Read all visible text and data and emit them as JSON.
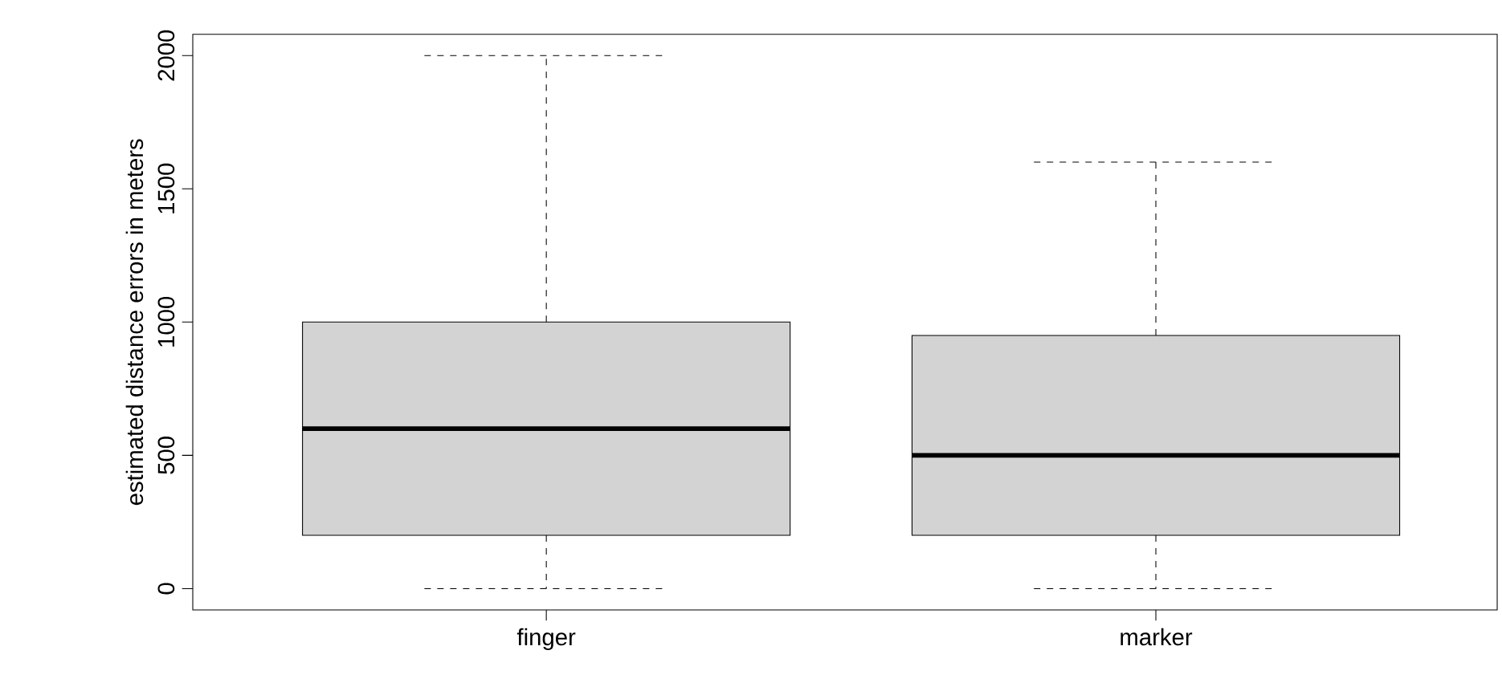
{
  "chart_data": {
    "type": "box",
    "ylabel": "estimated distance errors in meters",
    "categories": [
      "finger",
      "marker"
    ],
    "boxes": [
      {
        "low": 0,
        "q1": 200,
        "median": 600,
        "q3": 1000,
        "high": 2000
      },
      {
        "low": 0,
        "q1": 200,
        "median": 500,
        "q3": 950,
        "high": 1600
      }
    ],
    "color": "#d3d3d3",
    "ylim": [
      -80,
      2080
    ],
    "yticks": [
      0,
      500,
      1000,
      1500,
      2000
    ]
  }
}
